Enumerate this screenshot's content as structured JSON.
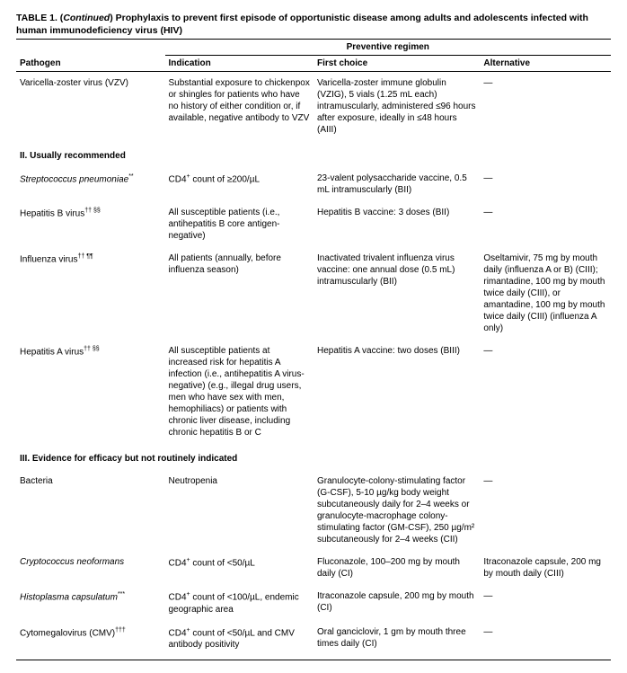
{
  "title_prefix": "TABLE 1. (",
  "title_continued": "Continued",
  "title_suffix": ") Prophylaxis to prevent first episode of opportunistic disease among adults and adolescents infected with human immunodeficiency virus (HIV)",
  "headers": {
    "preventive": "Preventive regimen",
    "pathogen": "Pathogen",
    "indication": "Indication",
    "first": "First choice",
    "alt": "Alternative"
  },
  "sections": {
    "s2": "II. Usually recommended",
    "s3": "III. Evidence for efficacy but not routinely indicated"
  },
  "rows": {
    "vzv": {
      "p": "Varicella-zoster virus (VZV)",
      "ind": "Substantial exposure to chickenpox or shingles for patients who have no history of either condition or, if available, negative antibody to VZV",
      "fc": "Varicella-zoster immune globulin (VZIG), 5 vials (1.25 mL each) intramuscularly, adminis­tered ≤96 hours after exposure, ideally in ≤48 hours (AIII)",
      "alt": "—"
    },
    "strep": {
      "p": "Streptococcus pneumoniae",
      "psup": "**",
      "ind": "CD4+ count of ≥200/µL",
      "fc": "23-valent polysaccharide vaccine, 0.5 mL intramuscularly (BII)",
      "alt": "—"
    },
    "hepb": {
      "p": "Hepatitis B virus",
      "psup": "†† §§",
      "ind": "All susceptible patients (i.e., antihepatitis B core antigen-negative)",
      "fc": "Hepatitis B vaccine: 3 doses (BII)",
      "alt": "—"
    },
    "flu": {
      "p": "Influenza virus",
      "psup": "†† ¶¶",
      "ind": "All patients (annually, before influenza season)",
      "fc": "Inactivated trivalent influenza virus vaccine: one annual dose (0.5 mL) intramuscularly (BII)",
      "alt": "Oseltamivir, 75 mg by mouth daily (influenza A or B) (CIII); rimantadine, 100 mg by mouth twice daily (CIII), or amantadine, 100 mg by mouth twice daily (CIII) (influenza A only)"
    },
    "hepa": {
      "p": "Hepatitis A virus",
      "psup": "†† §§",
      "ind": "All susceptible patients at increased risk for hepatitis A infection (i.e., antihepatitis A virus-negative) (e.g., illegal drug users, men who have sex with men, hemophiliacs) or patients with chronic liver disease, including chronic hepatitis B or C",
      "fc": "Hepatitis A vaccine: two doses (BIII)",
      "alt": "—"
    },
    "bact": {
      "p": "Bacteria",
      "ind": "Neutropenia",
      "fc": "Granulocyte-colony-stimulating factor (G-CSF), 5-10 µg/kg body weight subcutaneously daily for 2–4 weeks or granulocyte-macrophage colony-stimulating factor (GM-CSF), 250 µg/m² subcutaneously for 2–4 weeks (CII)",
      "alt": "—"
    },
    "crypt": {
      "p": "Cryptococcus neoformans",
      "ind": "CD4+ count of <50/µL",
      "fc": "Fluconazole, 100–200 mg by mouth daily (CI)",
      "alt": "Itraconazole capsule, 200 mg by mouth daily (CIII)"
    },
    "histo": {
      "p": "Histoplasma capsulatum",
      "psup": "***",
      "ind": "CD4+ count of <100/µL, endemic geographic area",
      "fc": "Itraconazole capsule, 200 mg by mouth (CI)",
      "alt": "—"
    },
    "cmv": {
      "p": "Cytomegalovirus (CMV)",
      "psup": "†††",
      "ind": "CD4+ count of <50/µL and CMV antibody positivity",
      "fc": "Oral ganciclovir, 1 gm by mouth three times daily (CI)",
      "alt": "—"
    }
  }
}
